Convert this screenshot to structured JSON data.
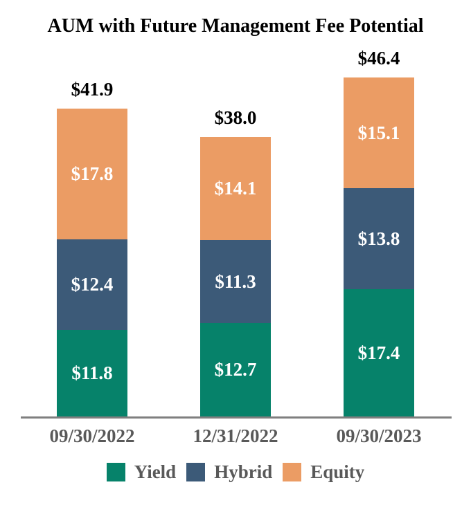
{
  "title": "AUM with Future Management Fee Potential",
  "chart_data": {
    "type": "bar",
    "stacked": true,
    "title": "AUM with Future Management Fee Potential",
    "value_prefix": "$",
    "categories": [
      "09/30/2022",
      "12/31/2022",
      "09/30/2023"
    ],
    "series": [
      {
        "name": "Yield",
        "color": "#06826A",
        "values": [
          11.8,
          12.7,
          17.4
        ]
      },
      {
        "name": "Hybrid",
        "color": "#3C5A78",
        "values": [
          12.4,
          11.3,
          13.8
        ]
      },
      {
        "name": "Equity",
        "color": "#EB9C64",
        "values": [
          17.8,
          14.1,
          15.1
        ]
      }
    ],
    "totals": [
      41.9,
      38.0,
      46.4
    ],
    "total_labels": [
      "$41.9",
      "$38.0",
      "$46.4"
    ],
    "segment_labels": {
      "Yield": [
        "$11.8",
        "$12.7",
        "$17.4"
      ],
      "Hybrid": [
        "$12.4",
        "$11.3",
        "$13.8"
      ],
      "Equity": [
        "$17.8",
        "$14.1",
        "$15.1"
      ]
    },
    "legend": [
      "Yield",
      "Hybrid",
      "Equity"
    ],
    "legend_position": "bottom",
    "grid": false,
    "y_axis_visible": false,
    "ylim": [
      0,
      50
    ],
    "colors": {
      "title_text": "#000000",
      "segment_label_text": "#FFFFFF",
      "total_label_text": "#000000",
      "axis_label_text": "#595959",
      "legend_label_text": "#595959",
      "axis_line": "#7F7F7F",
      "background": "#FFFFFF"
    }
  }
}
